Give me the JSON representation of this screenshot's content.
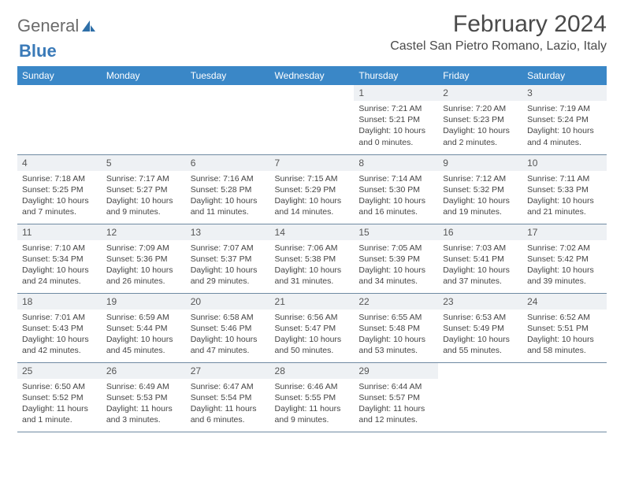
{
  "brand": {
    "part1": "General",
    "part2": "Blue"
  },
  "title": "February 2024",
  "location": "Castel San Pietro Romano, Lazio, Italy",
  "colors": {
    "header_bg": "#3a87c7",
    "header_text": "#ffffff",
    "daynum_bg": "#eef1f4",
    "border": "#6f8aa2",
    "brand_gray": "#6b6b6b",
    "brand_blue": "#3a7ab8"
  },
  "typography": {
    "title_fontsize": 30,
    "location_fontsize": 16,
    "header_fontsize": 12,
    "cell_fontsize": 10.5
  },
  "day_headers": [
    "Sunday",
    "Monday",
    "Tuesday",
    "Wednesday",
    "Thursday",
    "Friday",
    "Saturday"
  ],
  "weeks": [
    [
      {
        "empty": true
      },
      {
        "empty": true
      },
      {
        "empty": true
      },
      {
        "empty": true
      },
      {
        "num": "1",
        "sunrise": "Sunrise: 7:21 AM",
        "sunset": "Sunset: 5:21 PM",
        "daylight": "Daylight: 10 hours and 0 minutes."
      },
      {
        "num": "2",
        "sunrise": "Sunrise: 7:20 AM",
        "sunset": "Sunset: 5:23 PM",
        "daylight": "Daylight: 10 hours and 2 minutes."
      },
      {
        "num": "3",
        "sunrise": "Sunrise: 7:19 AM",
        "sunset": "Sunset: 5:24 PM",
        "daylight": "Daylight: 10 hours and 4 minutes."
      }
    ],
    [
      {
        "num": "4",
        "sunrise": "Sunrise: 7:18 AM",
        "sunset": "Sunset: 5:25 PM",
        "daylight": "Daylight: 10 hours and 7 minutes."
      },
      {
        "num": "5",
        "sunrise": "Sunrise: 7:17 AM",
        "sunset": "Sunset: 5:27 PM",
        "daylight": "Daylight: 10 hours and 9 minutes."
      },
      {
        "num": "6",
        "sunrise": "Sunrise: 7:16 AM",
        "sunset": "Sunset: 5:28 PM",
        "daylight": "Daylight: 10 hours and 11 minutes."
      },
      {
        "num": "7",
        "sunrise": "Sunrise: 7:15 AM",
        "sunset": "Sunset: 5:29 PM",
        "daylight": "Daylight: 10 hours and 14 minutes."
      },
      {
        "num": "8",
        "sunrise": "Sunrise: 7:14 AM",
        "sunset": "Sunset: 5:30 PM",
        "daylight": "Daylight: 10 hours and 16 minutes."
      },
      {
        "num": "9",
        "sunrise": "Sunrise: 7:12 AM",
        "sunset": "Sunset: 5:32 PM",
        "daylight": "Daylight: 10 hours and 19 minutes."
      },
      {
        "num": "10",
        "sunrise": "Sunrise: 7:11 AM",
        "sunset": "Sunset: 5:33 PM",
        "daylight": "Daylight: 10 hours and 21 minutes."
      }
    ],
    [
      {
        "num": "11",
        "sunrise": "Sunrise: 7:10 AM",
        "sunset": "Sunset: 5:34 PM",
        "daylight": "Daylight: 10 hours and 24 minutes."
      },
      {
        "num": "12",
        "sunrise": "Sunrise: 7:09 AM",
        "sunset": "Sunset: 5:36 PM",
        "daylight": "Daylight: 10 hours and 26 minutes."
      },
      {
        "num": "13",
        "sunrise": "Sunrise: 7:07 AM",
        "sunset": "Sunset: 5:37 PM",
        "daylight": "Daylight: 10 hours and 29 minutes."
      },
      {
        "num": "14",
        "sunrise": "Sunrise: 7:06 AM",
        "sunset": "Sunset: 5:38 PM",
        "daylight": "Daylight: 10 hours and 31 minutes."
      },
      {
        "num": "15",
        "sunrise": "Sunrise: 7:05 AM",
        "sunset": "Sunset: 5:39 PM",
        "daylight": "Daylight: 10 hours and 34 minutes."
      },
      {
        "num": "16",
        "sunrise": "Sunrise: 7:03 AM",
        "sunset": "Sunset: 5:41 PM",
        "daylight": "Daylight: 10 hours and 37 minutes."
      },
      {
        "num": "17",
        "sunrise": "Sunrise: 7:02 AM",
        "sunset": "Sunset: 5:42 PM",
        "daylight": "Daylight: 10 hours and 39 minutes."
      }
    ],
    [
      {
        "num": "18",
        "sunrise": "Sunrise: 7:01 AM",
        "sunset": "Sunset: 5:43 PM",
        "daylight": "Daylight: 10 hours and 42 minutes."
      },
      {
        "num": "19",
        "sunrise": "Sunrise: 6:59 AM",
        "sunset": "Sunset: 5:44 PM",
        "daylight": "Daylight: 10 hours and 45 minutes."
      },
      {
        "num": "20",
        "sunrise": "Sunrise: 6:58 AM",
        "sunset": "Sunset: 5:46 PM",
        "daylight": "Daylight: 10 hours and 47 minutes."
      },
      {
        "num": "21",
        "sunrise": "Sunrise: 6:56 AM",
        "sunset": "Sunset: 5:47 PM",
        "daylight": "Daylight: 10 hours and 50 minutes."
      },
      {
        "num": "22",
        "sunrise": "Sunrise: 6:55 AM",
        "sunset": "Sunset: 5:48 PM",
        "daylight": "Daylight: 10 hours and 53 minutes."
      },
      {
        "num": "23",
        "sunrise": "Sunrise: 6:53 AM",
        "sunset": "Sunset: 5:49 PM",
        "daylight": "Daylight: 10 hours and 55 minutes."
      },
      {
        "num": "24",
        "sunrise": "Sunrise: 6:52 AM",
        "sunset": "Sunset: 5:51 PM",
        "daylight": "Daylight: 10 hours and 58 minutes."
      }
    ],
    [
      {
        "num": "25",
        "sunrise": "Sunrise: 6:50 AM",
        "sunset": "Sunset: 5:52 PM",
        "daylight": "Daylight: 11 hours and 1 minute."
      },
      {
        "num": "26",
        "sunrise": "Sunrise: 6:49 AM",
        "sunset": "Sunset: 5:53 PM",
        "daylight": "Daylight: 11 hours and 3 minutes."
      },
      {
        "num": "27",
        "sunrise": "Sunrise: 6:47 AM",
        "sunset": "Sunset: 5:54 PM",
        "daylight": "Daylight: 11 hours and 6 minutes."
      },
      {
        "num": "28",
        "sunrise": "Sunrise: 6:46 AM",
        "sunset": "Sunset: 5:55 PM",
        "daylight": "Daylight: 11 hours and 9 minutes."
      },
      {
        "num": "29",
        "sunrise": "Sunrise: 6:44 AM",
        "sunset": "Sunset: 5:57 PM",
        "daylight": "Daylight: 11 hours and 12 minutes."
      },
      {
        "empty": true
      },
      {
        "empty": true
      }
    ]
  ]
}
